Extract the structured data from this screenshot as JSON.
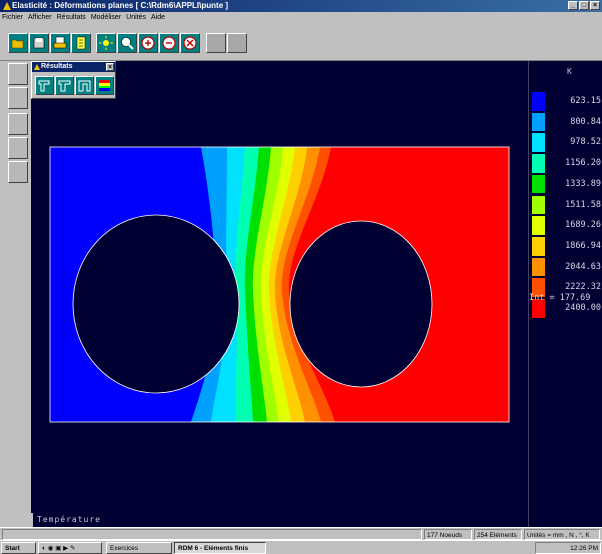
{
  "window": {
    "title": "Elasticité : Déformations planes   [ C:\\Rdm6\\APPLI\\punte ]",
    "controls": [
      "_",
      "□",
      "×"
    ]
  },
  "menu": [
    "Fichier",
    "Afficher",
    "Résultats",
    "Modéliser",
    "Unités",
    "Aide"
  ],
  "toolbar": {
    "icons": [
      "open-folder-icon",
      "save-disk-icon",
      "print-icon",
      "notepad-icon",
      "sun-icon",
      "zoom-icon",
      "zoom-in-icon",
      "zoom-out-icon",
      "zoom-reset-icon",
      "blank-icon",
      "blank-icon"
    ]
  },
  "palette": {
    "title": "Résultats",
    "close": "×"
  },
  "legend": {
    "unit": "K",
    "colors": [
      "#0000ff",
      "#00a0ff",
      "#00e0ff",
      "#00ffb0",
      "#00e000",
      "#a0ff00",
      "#e0ff00",
      "#ffd000",
      "#ff9000",
      "#ff5000",
      "#ff0000"
    ],
    "values": [
      "623.15",
      "800.84",
      "978.52",
      "1156.20",
      "1333.89",
      "1511.58",
      "1689.26",
      "1866.94",
      "2044.63",
      "2222.32",
      "2400.00"
    ],
    "interval": "Int = 177.69"
  },
  "canvas": {
    "label": "Température"
  },
  "status": {
    "nodes": "177 Noeuds",
    "elements": "254 Eléments",
    "units": "Unités = mm , N , °, K"
  },
  "taskbar": {
    "start": "Start",
    "task1": "Exercices",
    "task2": "RDM 6 - Eléments finis",
    "time": "12:26 PM"
  }
}
